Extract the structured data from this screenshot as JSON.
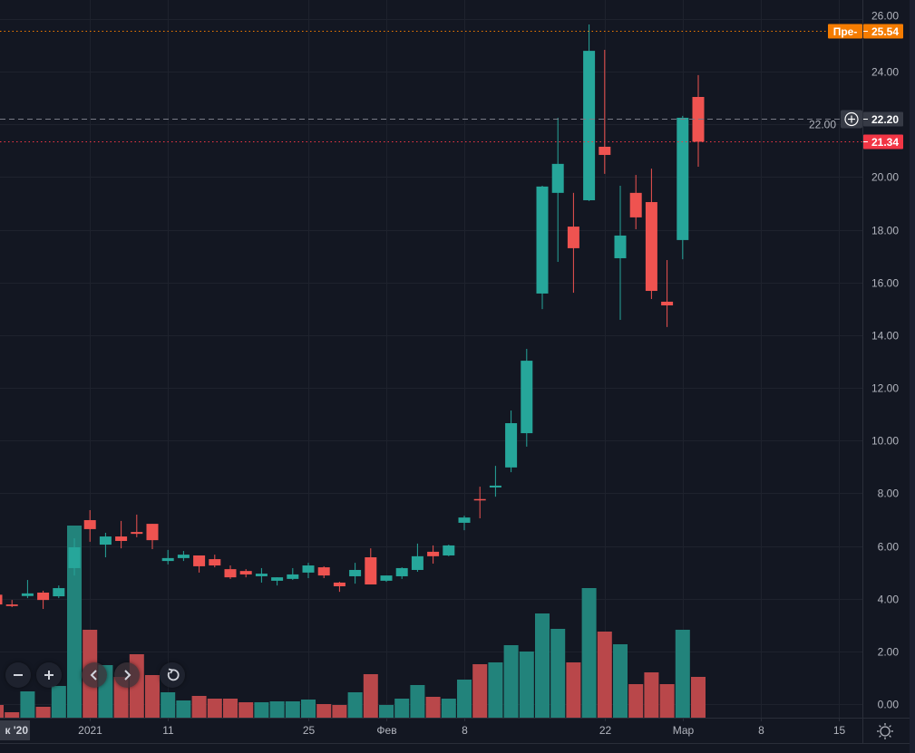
{
  "chart_data": {
    "type": "candlestick",
    "title": "",
    "xlabel": "",
    "ylabel": "",
    "ylim": [
      0,
      26
    ],
    "grid": true,
    "y_ticks": [
      "0.00",
      "2.00",
      "4.00",
      "6.00",
      "8.00",
      "10.00",
      "12.00",
      "14.00",
      "16.00",
      "18.00",
      "20.00",
      "22.00",
      "24.00",
      "26.00"
    ],
    "x_ticks": [
      {
        "label": "2021",
        "date": "2021-01-04"
      },
      {
        "label": "11",
        "date": "2021-01-11"
      },
      {
        "label": "25",
        "date": "2021-01-25"
      },
      {
        "label": "Фев",
        "date": "2021-02-01"
      },
      {
        "label": "8",
        "date": "2021-02-08"
      },
      {
        "label": "22",
        "date": "2021-02-22"
      },
      {
        "label": "Мар",
        "date": "2021-03-01"
      },
      {
        "label": "8",
        "date": "2021-03-08"
      },
      {
        "label": "15",
        "date": "2021-03-15"
      }
    ],
    "columns": [
      "date",
      "open",
      "high",
      "low",
      "close",
      "volume_relative"
    ],
    "candles": [
      [
        "2020-12-23",
        4.15,
        4.2,
        3.7,
        3.78,
        14
      ],
      [
        "2020-12-24",
        3.78,
        3.95,
        3.68,
        3.72,
        6
      ],
      [
        "2020-12-28",
        4.1,
        4.71,
        4.02,
        4.2,
        29
      ],
      [
        "2020-12-29",
        4.23,
        4.3,
        3.61,
        3.95,
        12
      ],
      [
        "2020-12-30",
        4.09,
        4.5,
        4.02,
        4.4,
        35
      ],
      [
        "2020-12-31",
        5.16,
        6.29,
        4.88,
        5.95,
        212
      ],
      [
        "2021-01-04",
        6.98,
        7.36,
        6.16,
        6.64,
        97
      ],
      [
        "2021-01-05",
        6.05,
        6.5,
        5.57,
        6.36,
        58
      ],
      [
        "2021-01-06",
        6.36,
        6.95,
        5.91,
        6.19,
        45
      ],
      [
        "2021-01-07",
        6.53,
        7.19,
        6.33,
        6.46,
        70
      ],
      [
        "2021-01-08",
        6.84,
        6.84,
        5.88,
        6.22,
        47
      ],
      [
        "2021-01-11",
        5.43,
        5.85,
        5.3,
        5.54,
        28
      ],
      [
        "2021-01-12",
        5.54,
        5.81,
        5.43,
        5.67,
        19
      ],
      [
        "2021-01-13",
        5.64,
        5.64,
        4.99,
        5.23,
        24
      ],
      [
        "2021-01-14",
        5.5,
        5.67,
        5.19,
        5.26,
        21
      ],
      [
        "2021-01-15",
        5.12,
        5.26,
        4.75,
        4.81,
        21
      ],
      [
        "2021-01-19",
        5.05,
        5.12,
        4.81,
        4.92,
        17
      ],
      [
        "2021-01-20",
        4.85,
        5.16,
        4.61,
        4.95,
        17
      ],
      [
        "2021-01-21",
        4.68,
        4.81,
        4.5,
        4.81,
        18
      ],
      [
        "2021-01-22",
        4.75,
        5.16,
        4.71,
        4.92,
        18
      ],
      [
        "2021-01-25",
        4.99,
        5.36,
        4.78,
        5.26,
        20
      ],
      [
        "2021-01-26",
        5.19,
        5.23,
        4.78,
        4.88,
        15
      ],
      [
        "2021-01-27",
        4.61,
        4.64,
        4.26,
        4.47,
        14
      ],
      [
        "2021-01-28",
        4.85,
        5.36,
        4.57,
        5.09,
        28
      ],
      [
        "2021-01-29",
        5.57,
        5.91,
        4.54,
        4.54,
        48
      ],
      [
        "2021-02-01",
        4.68,
        4.88,
        4.64,
        4.88,
        14
      ],
      [
        "2021-02-02",
        4.85,
        5.19,
        4.75,
        5.16,
        21
      ],
      [
        "2021-02-03",
        5.09,
        6.09,
        5.02,
        5.61,
        36
      ],
      [
        "2021-02-04",
        5.78,
        6.02,
        5.33,
        5.61,
        23
      ],
      [
        "2021-02-05",
        5.64,
        6.05,
        5.61,
        6.02,
        21
      ],
      [
        "2021-02-08",
        6.88,
        7.15,
        6.6,
        7.08,
        42
      ],
      [
        "2021-02-09",
        7.78,
        8.25,
        7.05,
        7.76,
        59
      ],
      [
        "2021-02-10",
        8.22,
        9.04,
        7.87,
        8.29,
        61
      ],
      [
        "2021-02-11",
        8.98,
        11.14,
        8.8,
        10.66,
        80
      ],
      [
        "2021-02-12",
        10.28,
        13.48,
        9.77,
        13.03,
        73
      ],
      [
        "2021-02-16",
        15.58,
        19.67,
        14.99,
        19.64,
        115
      ],
      [
        "2021-02-17",
        19.4,
        22.25,
        16.78,
        20.5,
        98
      ],
      [
        "2021-02-18",
        18.12,
        19.4,
        15.61,
        17.3,
        61
      ],
      [
        "2021-02-19",
        19.12,
        25.79,
        19.09,
        24.79,
        143
      ],
      [
        "2021-02-22",
        21.15,
        24.83,
        20.12,
        20.84,
        95
      ],
      [
        "2021-02-23",
        16.92,
        19.67,
        14.58,
        17.78,
        81
      ],
      [
        "2021-02-24",
        19.4,
        20.08,
        18.02,
        18.47,
        37
      ],
      [
        "2021-02-25",
        19.05,
        20.32,
        15.37,
        15.68,
        50
      ],
      [
        "2021-02-26",
        15.27,
        16.85,
        14.31,
        15.13,
        37
      ],
      [
        "2021-03-01",
        17.61,
        22.32,
        16.88,
        22.25,
        97
      ],
      [
        "2021-03-02",
        23.04,
        23.87,
        20.39,
        21.34,
        45
      ]
    ],
    "price_lines": [
      {
        "name": "premarket",
        "prefix": "Пре-",
        "value": 25.54,
        "label": "25.54",
        "color": "#f57c00",
        "style": "dotted"
      },
      {
        "name": "crosshair",
        "value": 22.2,
        "label": "22.20",
        "color": "#787b86",
        "style": "dashed"
      },
      {
        "name": "last-price",
        "value": 21.34,
        "label": "21.34",
        "color": "#f23645",
        "style": "dotted"
      }
    ],
    "colors": {
      "background": "#131722",
      "grid": "#1e222d",
      "up": "#26a69a",
      "down": "#ef5350",
      "volume_up": "#22837b",
      "volume_down": "#b9474a",
      "axis_text": "#b2b5be"
    }
  },
  "time_axis": {
    "crosshair_label": "к '20"
  },
  "controls": {
    "zoom_out": "zoom-out",
    "zoom_in": "zoom-in",
    "scroll_left": "scroll-left",
    "scroll_right": "scroll-right",
    "reset": "reset"
  }
}
